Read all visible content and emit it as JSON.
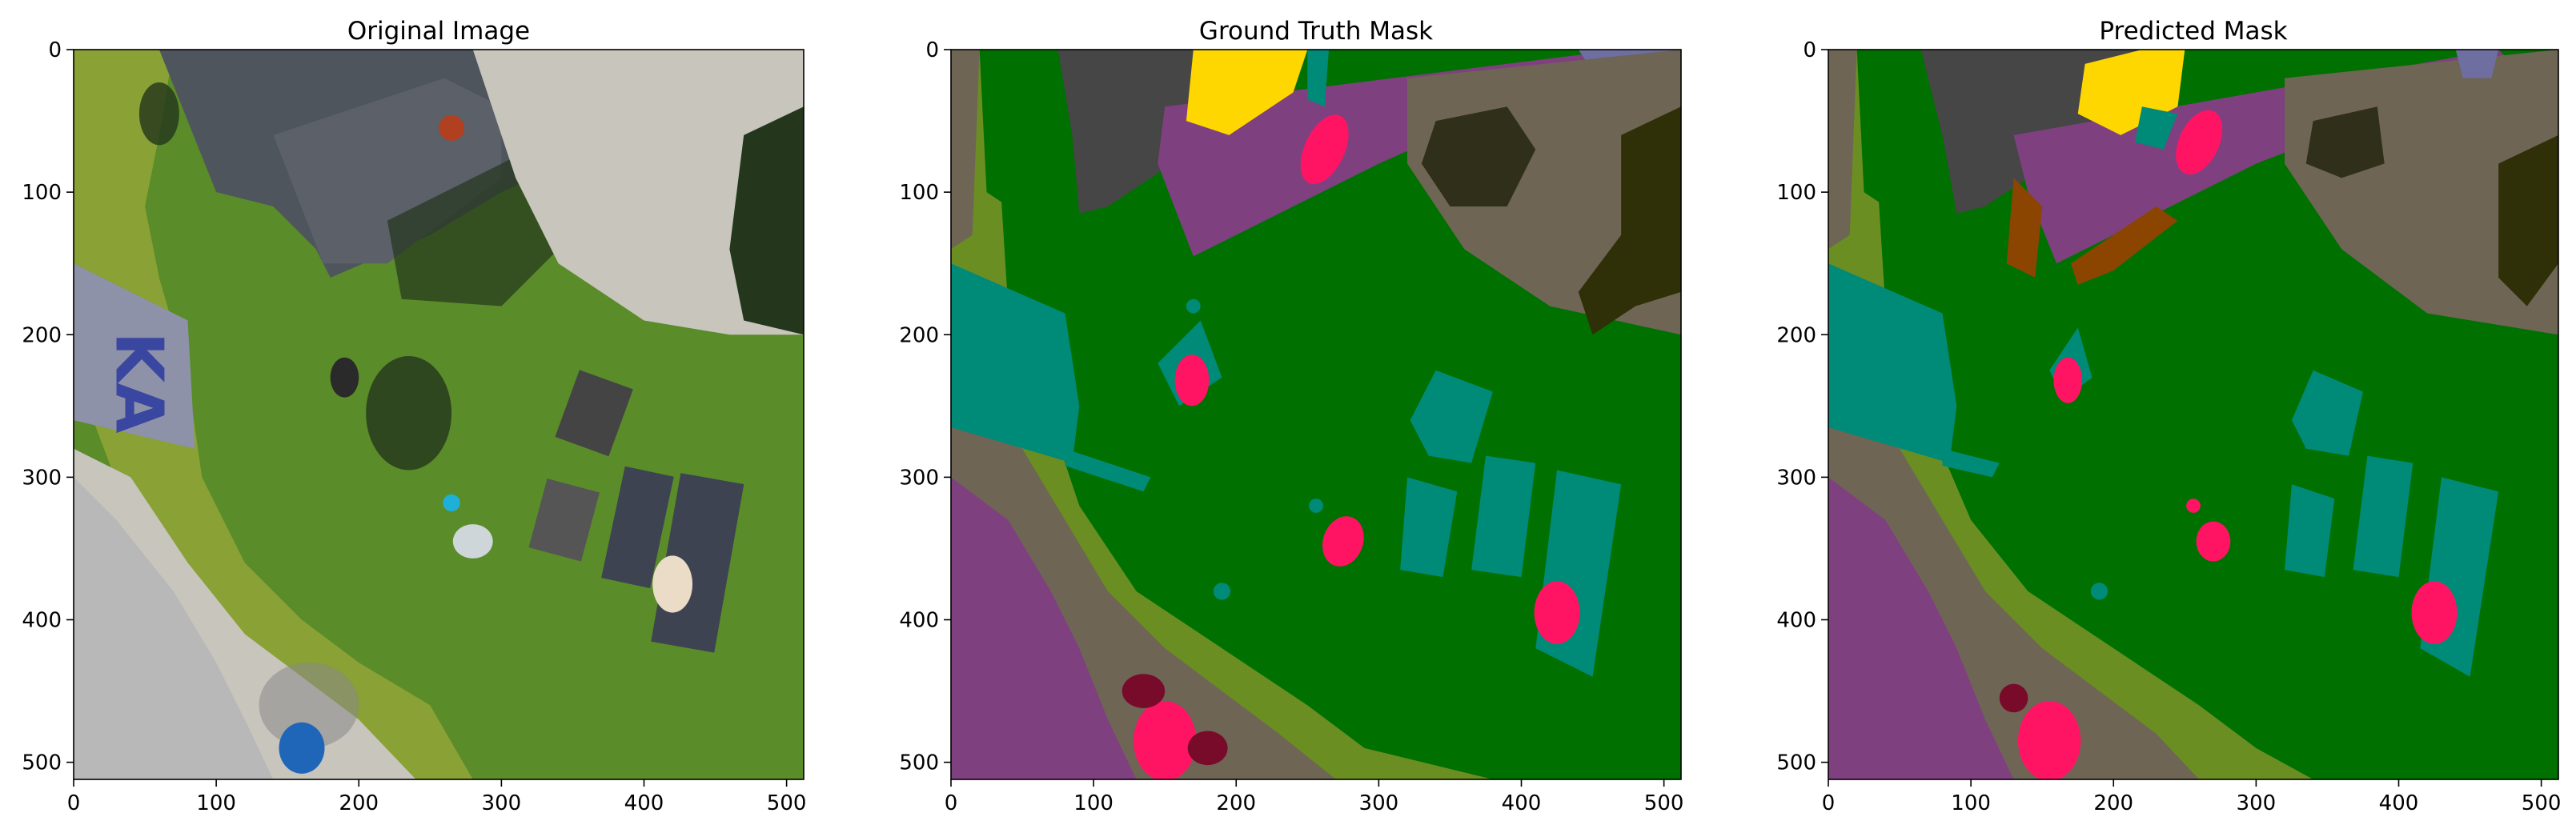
{
  "chart_data": [
    {
      "type": "image",
      "title": "Original Image",
      "xlim": [
        0,
        512
      ],
      "ylim": [
        512,
        0
      ],
      "xticks": [
        0,
        100,
        200,
        300,
        400,
        500
      ],
      "yticks": [
        0,
        100,
        200,
        300,
        400,
        500
      ],
      "grid": false
    },
    {
      "type": "image",
      "title": "Ground Truth Mask",
      "xlim": [
        0,
        512
      ],
      "ylim": [
        512,
        0
      ],
      "xticks": [
        0,
        100,
        200,
        300,
        400,
        500
      ],
      "yticks": [
        0,
        100,
        200,
        300,
        400,
        500
      ],
      "grid": false
    },
    {
      "type": "image",
      "title": "Predicted Mask",
      "xlim": [
        0,
        512
      ],
      "ylim": [
        512,
        0
      ],
      "xticks": [
        0,
        100,
        200,
        300,
        400,
        500
      ],
      "yticks": [
        0,
        100,
        200,
        300,
        400,
        500
      ],
      "grid": false
    }
  ],
  "palette": {
    "grass": "#007000",
    "vegetation": "#6b8e23",
    "gravel": "#6e6555",
    "paved": "#7f4080",
    "roof": "#464646",
    "obstacle": "#008a78",
    "person": "#ff1464",
    "bicycle": "#780a2a",
    "tree": "#30301a",
    "tree_dark": "#2f2f08",
    "door": "#ffd700",
    "window": "#6e6ea0",
    "dog": "#8b4500",
    "photo_grass": "#5a8c2a",
    "photo_gravel": "#c8c5bc",
    "photo_road": "#b8b8b8",
    "photo_roof": "#4e555d",
    "photo_shadow": "#24361c",
    "photo_hedge": "#9aa83a",
    "photo_flag": "#8d92a8",
    "photo_flag_text": "#3a47a0"
  }
}
